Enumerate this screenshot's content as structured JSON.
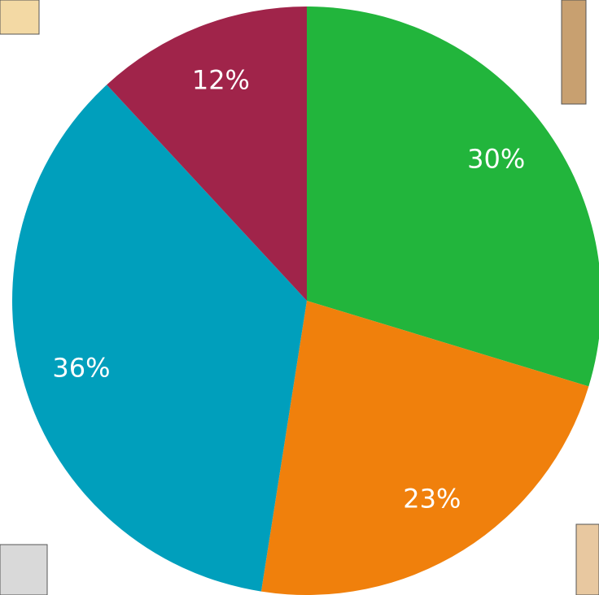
{
  "chart_data": {
    "type": "pie",
    "values": [
      30,
      23,
      36,
      12
    ],
    "value_labels": [
      "30%",
      "23%",
      "36%",
      "12%"
    ],
    "colors": [
      "#22b53c",
      "#f0800c",
      "#009fbc",
      "#a0244a"
    ]
  }
}
